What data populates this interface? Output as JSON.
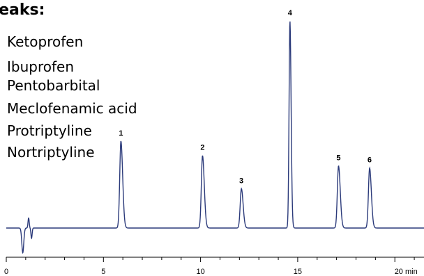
{
  "legend": {
    "title": "Peaks:",
    "items": [
      "Ketoprofen",
      "Ibuprofen",
      "Pentobarbital",
      "Meclofenamic acid",
      "Protriptyline",
      "Nortriptyline"
    ]
  },
  "colors": {
    "trace": "#2b3a7a",
    "axis": "#000000",
    "text": "#000000"
  },
  "chart_data": {
    "type": "line",
    "title": "",
    "xlabel": "",
    "ylabel": "",
    "x_unit_label": "20 min",
    "xlim": [
      0,
      21.5
    ],
    "ylim": [
      -0.1,
      1.0
    ],
    "x_ticks": [
      0,
      5,
      10,
      15,
      20
    ],
    "x_tick_labels": [
      "0",
      "5",
      "10",
      "15",
      "20 min"
    ],
    "grid": false,
    "legend_position": "top-left",
    "peaks": [
      {
        "label": "1",
        "compound": "Ketoprofen",
        "time": 5.9,
        "height": 0.42
      },
      {
        "label": "2",
        "compound": "Ibuprofen",
        "time": 10.1,
        "height": 0.35
      },
      {
        "label": "3",
        "compound": "Pentobarbital",
        "time": 12.1,
        "height": 0.19
      },
      {
        "label": "4",
        "compound": "Meclofenamic acid",
        "time": 14.6,
        "height": 1.0
      },
      {
        "label": "5",
        "compound": "Protriptyline",
        "time": 17.1,
        "height": 0.3
      },
      {
        "label": "6",
        "compound": "Nortriptyline",
        "time": 18.7,
        "height": 0.29
      }
    ]
  }
}
